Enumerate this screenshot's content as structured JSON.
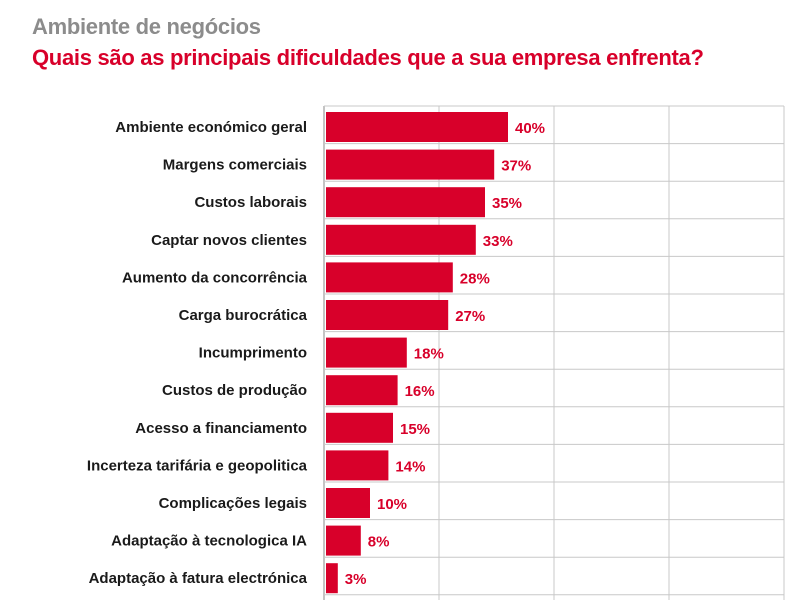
{
  "header": {
    "subtitle": "Ambiente de negócios",
    "title": "Quais são as principais dificuldades que a sua empresa enfrenta?"
  },
  "colors": {
    "bar": "#d8002a",
    "value_text": "#d8002a",
    "grid": "#c8c8c8",
    "subtitle": "#8c8c8c"
  },
  "chart_data": {
    "type": "bar",
    "orientation": "horizontal",
    "title": "Quais são as principais dificuldades que a sua empresa enfrenta?",
    "xlabel": "",
    "ylabel": "",
    "xlim": [
      0,
      100
    ],
    "grid": true,
    "value_suffix": "%",
    "categories": [
      "Ambiente económico geral",
      "Margens comerciais",
      "Custos laborais",
      "Captar novos clientes",
      "Aumento da concorrência",
      "Carga burocrática",
      "Incumprimento",
      "Custos de produção",
      "Acesso a financiamento",
      "Incerteza tarifária e geopolitica",
      "Complicações legais",
      "Adaptação à tecnologica IA",
      "Adaptação à fatura electrónica"
    ],
    "values": [
      40,
      37,
      35,
      33,
      28,
      27,
      18,
      16,
      15,
      14,
      10,
      8,
      3
    ]
  }
}
